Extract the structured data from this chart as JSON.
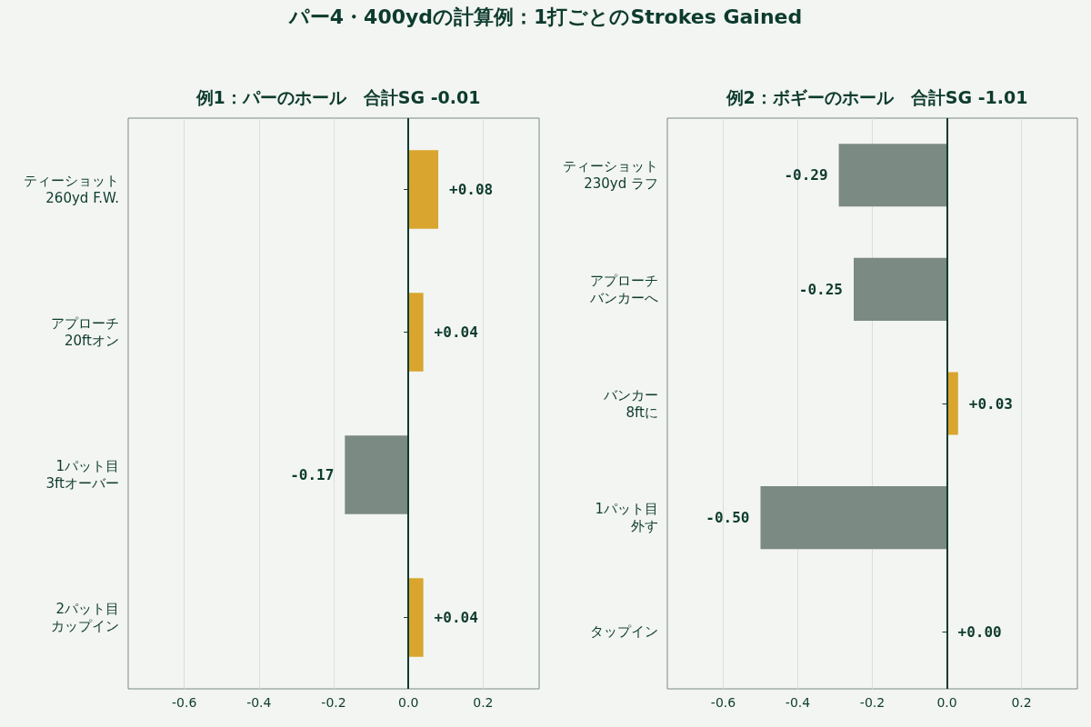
{
  "chart_data": [
    {
      "type": "bar",
      "orientation": "horizontal",
      "title": "パー4・400ydの計算例：1打ごとのStrokes Gained",
      "subtitle": "例1：パーのホール　合計SG -0.01",
      "categories": [
        "ティーショット\n260yd F.W.",
        "アプローチ\n20ftオン",
        "1パット目\n3ftオーバー",
        "2パット目カップイン"
      ],
      "values": [
        0.08,
        0.04,
        -0.17,
        0.04
      ],
      "colors": [
        "#d9a52e",
        "#d9a52e",
        "#7b8a82",
        "#d9a52e"
      ],
      "value_labels": [
        "+0.08",
        "+0.04",
        "-0.17",
        "+0.04"
      ],
      "xlim": [
        -0.75,
        0.35
      ],
      "xticks": [
        -0.6,
        -0.4,
        -0.2,
        {
          "value": 0,
          "label": "0.0"
        },
        0.2
      ],
      "ref_lines": [
        {
          "axis": "x",
          "value": 0,
          "color": "#0d3b2e"
        }
      ],
      "grid": "x"
    },
    {
      "type": "bar",
      "orientation": "horizontal",
      "subtitle": "例2：ボギーのホール　合計SG -1.01",
      "categories": [
        "ティーショット\n230yd ラフ",
        "アプローチバンカーへ",
        "バンカー\n8ftに",
        "1パット目外す",
        "タップイン"
      ],
      "values": [
        -0.29,
        -0.25,
        0.03,
        -0.5,
        0
      ],
      "colors": [
        "#7b8a82",
        "#7b8a82",
        "#d9a52e",
        "#7b8a82",
        "#d9a52e"
      ],
      "value_labels": [
        "-0.29",
        "-0.25",
        "+0.03",
        "-0.50",
        "+0.00"
      ],
      "xlim": [
        -0.75,
        0.35
      ],
      "xticks": [
        -0.6,
        -0.4,
        -0.2,
        {
          "value": 0,
          "label": "0.0"
        },
        0.2
      ],
      "ref_lines": [
        {
          "axis": "x",
          "value": 0,
          "color": "#0d3b2e"
        }
      ],
      "grid": "x"
    }
  ]
}
